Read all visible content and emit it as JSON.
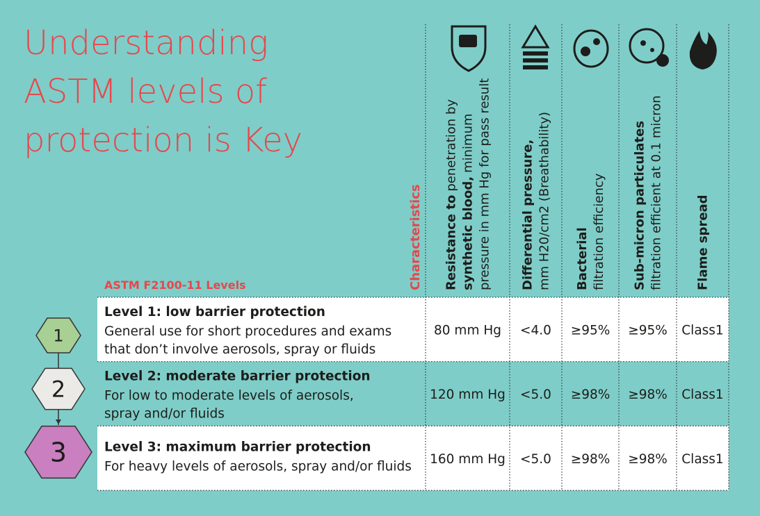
{
  "title": {
    "lines": [
      "Understanding",
      "ASTM levels of",
      "protection is Key"
    ]
  },
  "table": {
    "characteristics_label": "Characteristics",
    "levels_label": "ASTM F2100-11 Levels",
    "columns": [
      {
        "lines": [
          {
            "bold": "Resistance to",
            "text": "penetration by"
          },
          {
            "bold": "synthetic blood,",
            "text": "minimum"
          },
          {
            "text": "pressure in mm Hg for pass result"
          }
        ]
      },
      {
        "lines": [
          {
            "bold": "Differential pressure,"
          },
          {
            "text": "mm H20/cm2 (Breathability)"
          }
        ]
      },
      {
        "lines": [
          {
            "bold": "Bacterial"
          },
          {
            "text": "filtration efficiency"
          }
        ]
      },
      {
        "lines": [
          {
            "bold": "Sub-micron particulates"
          },
          {
            "text": "filtration efficient at 0.1 micron"
          }
        ]
      },
      {
        "lines": [
          {
            "bold": "Flame spread"
          }
        ]
      }
    ],
    "rows": [
      {
        "number": "1",
        "title": "Level 1: low barrier protection",
        "description": [
          "General use for short procedures and exams",
          "that don’t involve aerosols, spray or fluids"
        ],
        "values": [
          "80 mm Hg",
          "<4.0",
          "≥95%",
          "≥95%",
          "Class1"
        ]
      },
      {
        "number": "2",
        "title": "Level 2: moderate barrier protection",
        "description": [
          "For low to moderate levels of aerosols,",
          "spray and/or fluids"
        ],
        "values": [
          "120 mm Hg",
          "<5.0",
          "≥98%",
          "≥98%",
          "Class1"
        ]
      },
      {
        "number": "3",
        "title": "Level 3: maximum barrier protection",
        "description": [
          "For heavy levels of aerosols, spray and/or fluids"
        ],
        "values": [
          "160 mm Hg",
          "<5.0",
          "≥98%",
          "≥98%",
          "Class1"
        ]
      }
    ]
  }
}
